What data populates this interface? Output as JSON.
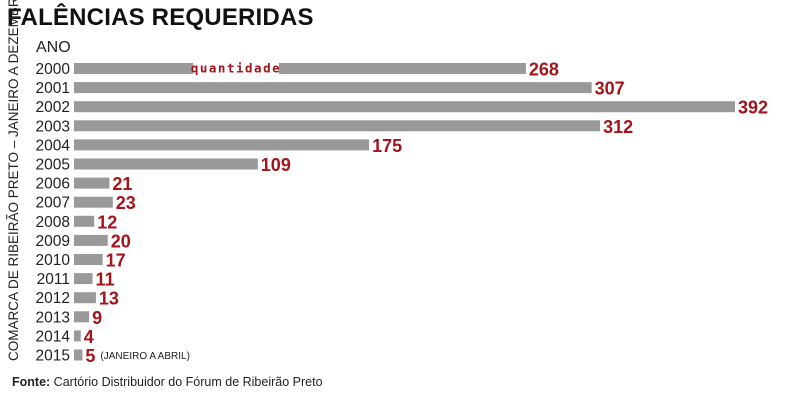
{
  "chart_data": {
    "type": "bar",
    "orientation": "horizontal",
    "title": "FALÊNCIAS REQUERIDAS",
    "y_header": "ANO",
    "ylabel": "COMARCA DE RIBEIRÃO PRETO – JANEIRO A DEZEMBRO",
    "series_label": "quantidade",
    "categories": [
      "2000",
      "2001",
      "2002",
      "2003",
      "2004",
      "2005",
      "2006",
      "2007",
      "2008",
      "2009",
      "2010",
      "2011",
      "2012",
      "2013",
      "2014",
      "2015"
    ],
    "values": [
      268,
      307,
      392,
      312,
      175,
      109,
      21,
      23,
      12,
      20,
      17,
      11,
      13,
      9,
      4,
      5
    ],
    "annotations": [
      {
        "category": "2015",
        "text": "(JANEIRO A ABRIL)"
      }
    ],
    "xlim": [
      0,
      392
    ],
    "grid": false,
    "colors": {
      "bar": "#999999",
      "value_label": "#a3141b"
    }
  },
  "source": {
    "label": "Fonte:",
    "text": "Cartório Distribuidor do Fórum de  Ribeirão Preto"
  }
}
